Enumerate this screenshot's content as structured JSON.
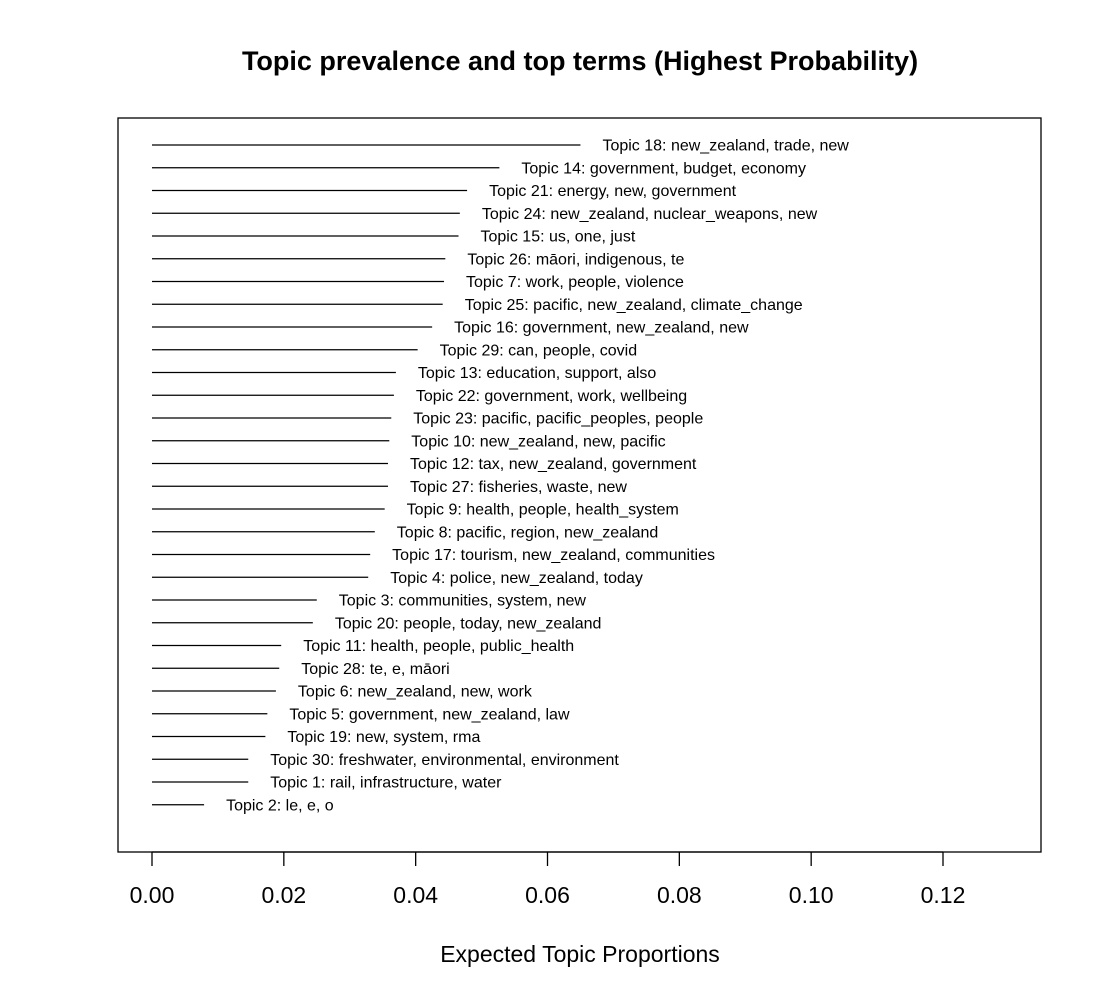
{
  "chart_data": {
    "type": "bar",
    "orientation": "horizontal",
    "title": "Topic prevalence and top terms (Highest Probability)",
    "xlabel": "Expected Topic Proportions",
    "ylabel": "",
    "xlim": [
      -0.005,
      0.135
    ],
    "xticks": [
      0.0,
      0.02,
      0.04,
      0.06,
      0.08,
      0.1,
      0.12
    ],
    "xtick_labels": [
      "0.00",
      "0.02",
      "0.04",
      "0.06",
      "0.08",
      "0.10",
      "0.12"
    ],
    "grid": false,
    "legend": "none",
    "bars": [
      {
        "label": "Topic 18: new_zealand, trade, new",
        "value": 0.065
      },
      {
        "label": "Topic 14: government, budget, economy",
        "value": 0.0527
      },
      {
        "label": "Topic 21: energy, new, government",
        "value": 0.0478
      },
      {
        "label": "Topic 24: new_zealand, nuclear_weapons, new",
        "value": 0.0467
      },
      {
        "label": "Topic 15: us, one, just",
        "value": 0.0465
      },
      {
        "label": "Topic 26: māori, indigenous, te",
        "value": 0.0445
      },
      {
        "label": "Topic 7: work, people, violence",
        "value": 0.0443
      },
      {
        "label": "Topic 25: pacific, new_zealand, climate_change",
        "value": 0.0441
      },
      {
        "label": "Topic 16: government, new_zealand, new",
        "value": 0.0425
      },
      {
        "label": "Topic 29: can, people, covid",
        "value": 0.0403
      },
      {
        "label": "Topic 13: education, support, also",
        "value": 0.037
      },
      {
        "label": "Topic 22: government, work, wellbeing",
        "value": 0.0367
      },
      {
        "label": "Topic 23: pacific, pacific_peoples, people",
        "value": 0.0363
      },
      {
        "label": "Topic 10: new_zealand, new, pacific",
        "value": 0.036
      },
      {
        "label": "Topic 12: tax, new_zealand, government",
        "value": 0.0358
      },
      {
        "label": "Topic 27: fisheries, waste, new",
        "value": 0.0358
      },
      {
        "label": "Topic 9: health, people, health_system",
        "value": 0.0353
      },
      {
        "label": "Topic 8: pacific, region, new_zealand",
        "value": 0.0338
      },
      {
        "label": "Topic 17: tourism, new_zealand, communities",
        "value": 0.0331
      },
      {
        "label": "Topic 4: police, new_zealand, today",
        "value": 0.0328
      },
      {
        "label": "Topic 3: communities, system, new",
        "value": 0.025
      },
      {
        "label": "Topic 20: people, today, new_zealand",
        "value": 0.0244
      },
      {
        "label": "Topic 11: health, people, public_health",
        "value": 0.0196
      },
      {
        "label": "Topic 28: te, e, māori",
        "value": 0.0193
      },
      {
        "label": "Topic 6: new_zealand, new, work",
        "value": 0.0188
      },
      {
        "label": "Topic 5: government, new_zealand, law",
        "value": 0.0175
      },
      {
        "label": "Topic 19: new, system, rma",
        "value": 0.0172
      },
      {
        "label": "Topic 30: freshwater, environmental, environment",
        "value": 0.0146
      },
      {
        "label": "Topic 1: rail, infrastructure, water",
        "value": 0.0146
      },
      {
        "label": "Topic 2: le, e, o",
        "value": 0.0079
      }
    ]
  }
}
